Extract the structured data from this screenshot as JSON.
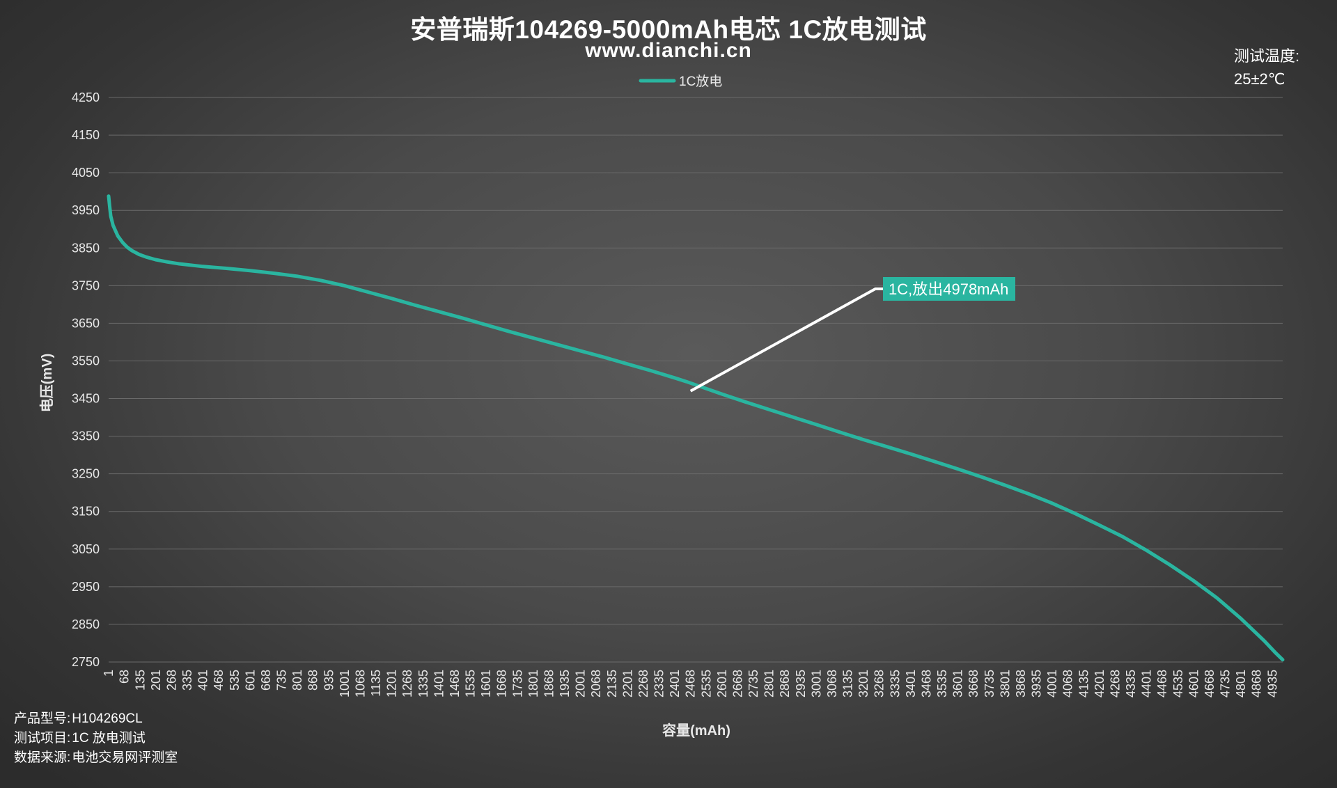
{
  "header": {
    "title": "安普瑞斯104269-5000mAh电芯 1C放电测试",
    "subtitle": "www.dianchi.cn"
  },
  "temperature": {
    "label": "测试温度:",
    "value": "25±2℃"
  },
  "info": [
    {
      "label": "产品型号:",
      "value": "H104269CL"
    },
    {
      "label": "测试项目:",
      "value": "1C 放电测试"
    },
    {
      "label": "数据来源:",
      "value": "电池交易网评测室"
    }
  ],
  "colors": {
    "series": "#2ab5a0",
    "annotation_line": "#ffffff",
    "annotation_box": "#2ab5a0",
    "gridline": "#6a6a6a"
  },
  "chart_data": {
    "type": "line",
    "title": "安普瑞斯104269-5000mAh电芯 1C放电测试",
    "xlabel": "容量(mAh)",
    "ylabel": "电压(mV)",
    "ylim": [
      2750,
      4250
    ],
    "yticks": [
      4250,
      4150,
      4050,
      3950,
      3850,
      3750,
      3650,
      3550,
      3450,
      3350,
      3250,
      3150,
      3050,
      2950,
      2850,
      2750
    ],
    "xlim": [
      1,
      4978
    ],
    "xticks": [
      1,
      68,
      135,
      201,
      268,
      335,
      401,
      468,
      535,
      601,
      668,
      735,
      801,
      868,
      935,
      1001,
      1068,
      1135,
      1201,
      1268,
      1335,
      1401,
      1468,
      1535,
      1601,
      1668,
      1735,
      1801,
      1868,
      1935,
      2001,
      2068,
      2135,
      2201,
      2268,
      2335,
      2401,
      2468,
      2535,
      2601,
      2668,
      2735,
      2801,
      2868,
      2935,
      3001,
      3068,
      3135,
      3201,
      3268,
      3335,
      3401,
      3468,
      3535,
      3601,
      3668,
      3735,
      3801,
      3868,
      3935,
      4001,
      4068,
      4135,
      4201,
      4268,
      4335,
      4401,
      4468,
      4535,
      4601,
      4668,
      4735,
      4801,
      4868,
      4935
    ],
    "grid": true,
    "legend_position": "top-center",
    "series": [
      {
        "name": "1C放电",
        "x": [
          1,
          5,
          10,
          20,
          40,
          60,
          80,
          100,
          130,
          160,
          200,
          250,
          300,
          400,
          500,
          600,
          700,
          800,
          900,
          1000,
          1100,
          1200,
          1300,
          1400,
          1500,
          1600,
          1700,
          1800,
          1900,
          2000,
          2100,
          2200,
          2300,
          2400,
          2450,
          2500,
          2600,
          2700,
          2800,
          2900,
          3000,
          3100,
          3200,
          3300,
          3400,
          3500,
          3600,
          3700,
          3800,
          3900,
          4000,
          4100,
          4200,
          4300,
          4400,
          4500,
          4600,
          4700,
          4800,
          4900,
          4950,
          4978
        ],
        "values": [
          3988,
          3962,
          3935,
          3910,
          3882,
          3865,
          3852,
          3843,
          3833,
          3826,
          3819,
          3813,
          3808,
          3801,
          3796,
          3790,
          3783,
          3775,
          3764,
          3750,
          3733,
          3716,
          3698,
          3681,
          3664,
          3646,
          3628,
          3611,
          3594,
          3577,
          3560,
          3542,
          3524,
          3505,
          3495,
          3484,
          3462,
          3441,
          3421,
          3401,
          3381,
          3361,
          3341,
          3322,
          3303,
          3283,
          3263,
          3242,
          3220,
          3197,
          3172,
          3144,
          3114,
          3083,
          3047,
          3008,
          2966,
          2920,
          2866,
          2806,
          2773,
          2756
        ]
      }
    ],
    "annotations": [
      {
        "text": "1C,放出4978mAh",
        "x": 2468,
        "y": 3470
      }
    ]
  }
}
